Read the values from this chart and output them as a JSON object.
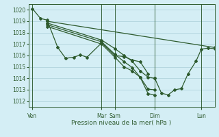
{
  "title": "",
  "xlabel": "Pression niveau de la mer( hPa )",
  "background_color": "#d4eef5",
  "grid_color": "#aacdd8",
  "line_color": "#2d5a2d",
  "ylim": [
    1011.5,
    1020.5
  ],
  "yticks": [
    1012,
    1013,
    1014,
    1015,
    1016,
    1017,
    1018,
    1019,
    1020
  ],
  "xlim": [
    0,
    14.0
  ],
  "xtick_labels": [
    "Ven",
    "Mar",
    "Sam",
    "Dim",
    "Lun"
  ],
  "xtick_positions": [
    0.3,
    5.5,
    6.5,
    9.5,
    13.0
  ],
  "vline_positions": [
    0.3,
    5.5,
    6.5,
    9.5,
    13.0
  ],
  "series": [
    {
      "x": [
        0.3,
        0.9,
        1.4,
        2.2,
        2.8,
        3.4,
        3.9,
        4.4,
        5.5,
        6.5,
        7.2,
        7.8,
        8.4,
        9.0
      ],
      "y": [
        1020.1,
        1019.25,
        1019.1,
        1016.7,
        1015.75,
        1015.85,
        1016.05,
        1015.85,
        1017.1,
        1016.0,
        1015.9,
        1015.6,
        1015.45,
        1014.4
      ]
    },
    {
      "x": [
        1.4,
        14.0
      ],
      "y": [
        1019.0,
        1016.7
      ]
    },
    {
      "x": [
        1.4,
        5.5,
        6.5,
        7.2,
        7.8,
        8.4,
        9.0,
        9.5
      ],
      "y": [
        1018.85,
        1017.35,
        1016.6,
        1016.0,
        1015.5,
        1014.65,
        1014.1,
        1014.0
      ]
    },
    {
      "x": [
        1.4,
        5.5,
        6.5,
        7.2,
        7.8,
        8.4,
        9.0,
        9.5
      ],
      "y": [
        1018.7,
        1017.2,
        1016.1,
        1015.45,
        1014.95,
        1014.1,
        1013.05,
        1013.0
      ]
    },
    {
      "x": [
        1.4,
        5.5,
        6.5,
        7.2,
        7.8,
        8.4,
        9.0,
        9.5
      ],
      "y": [
        1018.55,
        1017.0,
        1015.85,
        1015.0,
        1014.65,
        1014.1,
        1012.65,
        1012.55
      ]
    },
    {
      "x": [
        9.5,
        10.0,
        10.5,
        11.0,
        11.5,
        12.0,
        12.6,
        13.0,
        13.5,
        14.0
      ],
      "y": [
        1014.0,
        1012.7,
        1012.55,
        1013.0,
        1013.1,
        1014.4,
        1015.5,
        1016.55,
        1016.65,
        1016.6
      ]
    }
  ]
}
